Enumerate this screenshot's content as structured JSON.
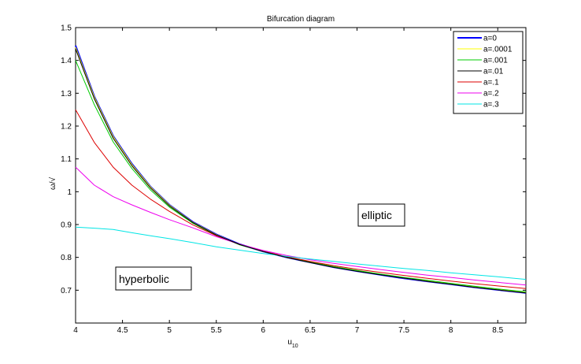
{
  "chart_data": {
    "type": "line",
    "title": "Bifurcation diagram",
    "xlabel": "u",
    "xlabel_sub": "10",
    "ylabel": "ω/√",
    "xlim": [
      4,
      8.8
    ],
    "ylim": [
      0.6,
      1.5
    ],
    "xticks": [
      4,
      4.5,
      5,
      5.5,
      6,
      6.5,
      7,
      7.5,
      8,
      8.5
    ],
    "yticks": [
      0.7,
      0.8,
      0.9,
      1,
      1.1,
      1.2,
      1.3,
      1.4,
      1.5
    ],
    "grid": false,
    "legend_position": "top-right",
    "annotations": [
      {
        "text": "elliptic",
        "x": 7.2,
        "y": 0.925
      },
      {
        "text": "hyperbolic",
        "x": 4.6,
        "y": 0.735
      }
    ],
    "series": [
      {
        "name": "a=0",
        "color": "#0000ff",
        "width": 2,
        "x": [
          4,
          4.2,
          4.4,
          4.6,
          4.8,
          5,
          5.25,
          5.5,
          5.75,
          6,
          6.25,
          6.5,
          6.75,
          7,
          7.25,
          7.5,
          7.75,
          8,
          8.25,
          8.5,
          8.8
        ],
        "y": [
          1.445,
          1.29,
          1.17,
          1.085,
          1.015,
          0.96,
          0.908,
          0.87,
          0.84,
          0.818,
          0.8,
          0.785,
          0.77,
          0.758,
          0.747,
          0.736,
          0.727,
          0.718,
          0.709,
          0.701,
          0.692
        ]
      },
      {
        "name": "a=.0001",
        "color": "#ffff00",
        "width": 1,
        "x": [
          4,
          4.2,
          4.4,
          4.6,
          4.8,
          5,
          5.25,
          5.5,
          5.75,
          6,
          6.25,
          6.5,
          6.75,
          7,
          7.25,
          7.5,
          7.75,
          8,
          8.25,
          8.5,
          8.8
        ],
        "y": [
          1.44,
          1.288,
          1.168,
          1.083,
          1.014,
          0.959,
          0.907,
          0.869,
          0.839,
          0.818,
          0.8,
          0.785,
          0.771,
          0.759,
          0.748,
          0.737,
          0.728,
          0.719,
          0.71,
          0.702,
          0.693
        ]
      },
      {
        "name": "a=.001",
        "color": "#00cc00",
        "width": 1,
        "x": [
          4,
          4.2,
          4.4,
          4.6,
          4.8,
          5,
          5.25,
          5.5,
          5.75,
          6,
          6.25,
          6.5,
          6.75,
          7,
          7.25,
          7.5,
          7.75,
          8,
          8.25,
          8.5,
          8.8
        ],
        "y": [
          1.4,
          1.265,
          1.152,
          1.071,
          1.005,
          0.953,
          0.904,
          0.867,
          0.838,
          0.818,
          0.801,
          0.786,
          0.772,
          0.76,
          0.749,
          0.739,
          0.73,
          0.721,
          0.712,
          0.704,
          0.695
        ]
      },
      {
        "name": "a=.01",
        "color": "#000000",
        "width": 1,
        "x": [
          4,
          4.2,
          4.4,
          4.6,
          4.8,
          5,
          5.25,
          5.5,
          5.75,
          6,
          6.25,
          6.5,
          6.75,
          7,
          7.25,
          7.5,
          7.75,
          8,
          8.25,
          8.5,
          8.8
        ],
        "y": [
          1.435,
          1.283,
          1.163,
          1.079,
          1.011,
          0.957,
          0.906,
          0.868,
          0.839,
          0.818,
          0.8,
          0.784,
          0.77,
          0.758,
          0.747,
          0.737,
          0.727,
          0.718,
          0.709,
          0.701,
          0.692
        ]
      },
      {
        "name": "a=.1",
        "color": "#dd0000",
        "width": 1,
        "x": [
          4,
          4.2,
          4.4,
          4.6,
          4.8,
          5,
          5.25,
          5.5,
          5.75,
          6,
          6.25,
          6.5,
          6.75,
          7,
          7.25,
          7.5,
          7.75,
          8,
          8.25,
          8.5,
          8.8
        ],
        "y": [
          1.25,
          1.15,
          1.075,
          1.02,
          0.977,
          0.94,
          0.899,
          0.866,
          0.84,
          0.819,
          0.802,
          0.788,
          0.775,
          0.764,
          0.754,
          0.745,
          0.736,
          0.728,
          0.72,
          0.713,
          0.705
        ]
      },
      {
        "name": "a=.2",
        "color": "#ee00ee",
        "width": 1,
        "x": [
          4,
          4.2,
          4.4,
          4.6,
          4.8,
          5,
          5.25,
          5.5,
          5.75,
          6,
          6.25,
          6.5,
          6.75,
          7,
          7.25,
          7.5,
          7.75,
          8,
          8.25,
          8.5,
          8.8
        ],
        "y": [
          1.075,
          1.02,
          0.985,
          0.96,
          0.937,
          0.915,
          0.89,
          0.863,
          0.84,
          0.821,
          0.806,
          0.793,
          0.782,
          0.772,
          0.763,
          0.754,
          0.746,
          0.739,
          0.731,
          0.724,
          0.716
        ]
      },
      {
        "name": "a=.3",
        "color": "#00e5e5",
        "width": 1,
        "x": [
          4,
          4.2,
          4.4,
          4.6,
          4.8,
          5,
          5.25,
          5.5,
          5.75,
          6,
          6.25,
          6.5,
          6.75,
          7,
          7.25,
          7.5,
          7.75,
          8,
          8.25,
          8.5,
          8.8
        ],
        "y": [
          0.892,
          0.889,
          0.885,
          0.875,
          0.866,
          0.857,
          0.845,
          0.832,
          0.822,
          0.812,
          0.803,
          0.795,
          0.788,
          0.78,
          0.773,
          0.766,
          0.76,
          0.753,
          0.747,
          0.741,
          0.733
        ]
      }
    ]
  }
}
